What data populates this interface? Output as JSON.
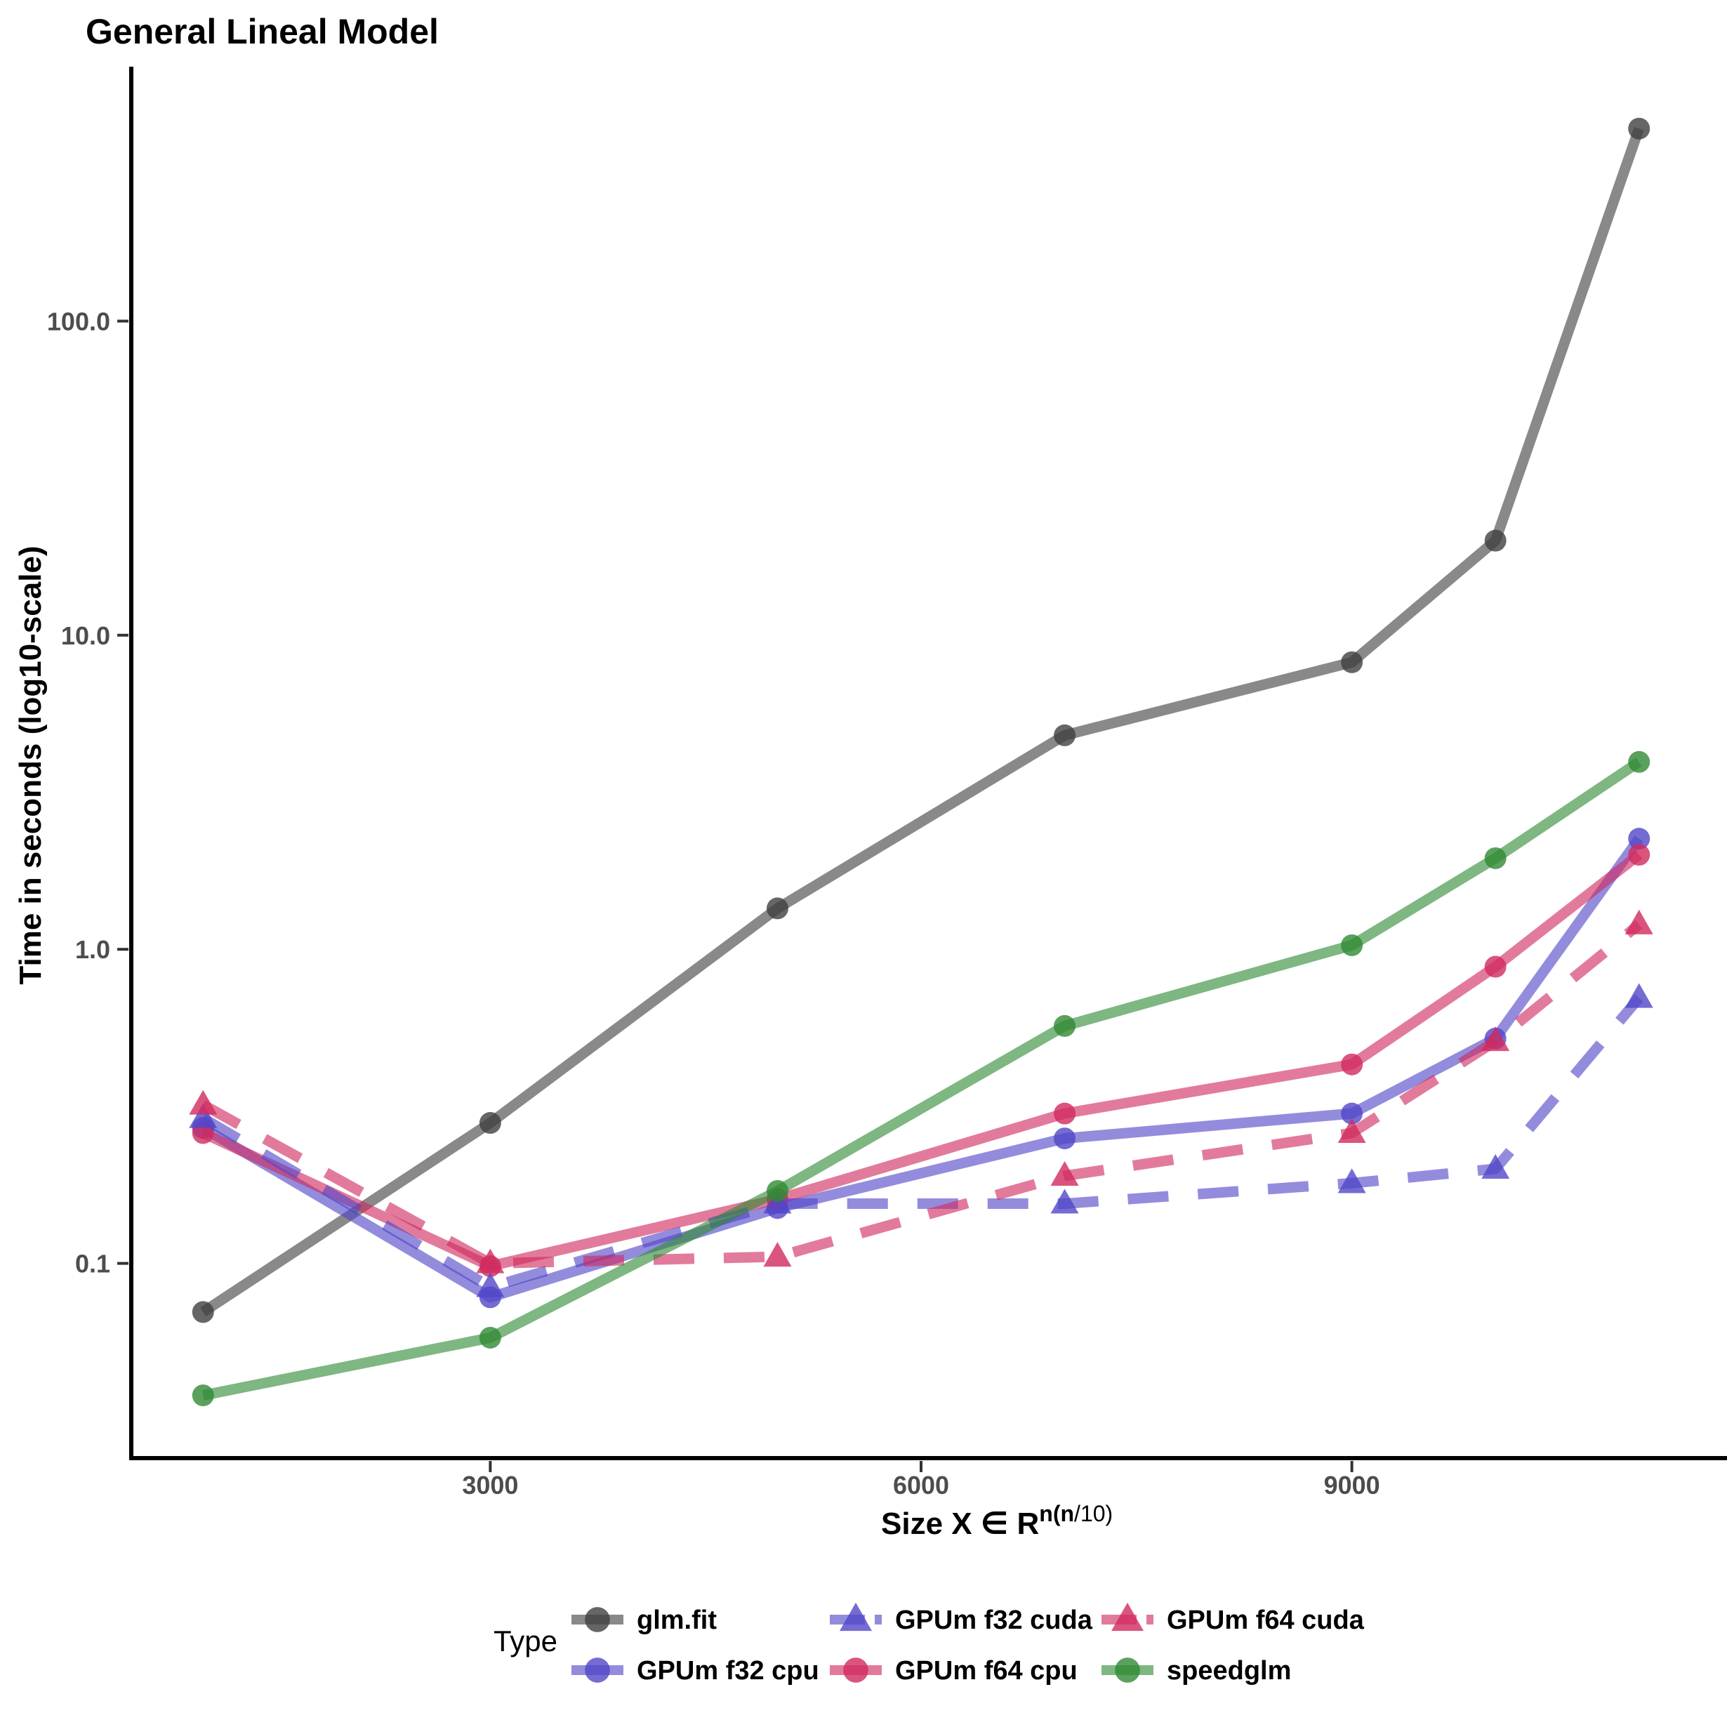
{
  "chart_data": {
    "type": "line",
    "title": "General Lineal Model",
    "ylabel": "Time in seconds (log10-scale)",
    "xlabel_main": "Size  X ∈ R",
    "xlabel_sup_bold": "n(n",
    "xlabel_sup_rest": "/10)",
    "y_scale": "log10",
    "x": [
      1000,
      3000,
      5000,
      7000,
      9000,
      10000,
      11000
    ],
    "x_ticks": [
      3000,
      6000,
      9000
    ],
    "x_tick_labels": [
      "3000",
      "6000",
      "9000"
    ],
    "y_ticks": [
      0.1,
      1.0,
      10.0,
      100.0
    ],
    "y_tick_labels": [
      "0.1",
      "1.0",
      "10.0",
      "100.0"
    ],
    "x_domain": [
      500,
      11500
    ],
    "y_domain_log": [
      -1.62,
      2.81
    ],
    "grid": "off",
    "legend_title": "Type",
    "legend_position": "bottom",
    "legend_columns": [
      [
        "glm.fit",
        "GPUm f32 cpu"
      ],
      [
        "GPUm f32 cuda",
        "GPUm f64 cpu"
      ],
      [
        "GPUm f64 cuda",
        "speedglm"
      ]
    ],
    "series": [
      {
        "name": "glm.fit",
        "color": "#404040",
        "linetype": "solid",
        "marker": "circle",
        "values": [
          0.07,
          0.28,
          1.35,
          4.8,
          8.2,
          20,
          410
        ]
      },
      {
        "name": "GPUm f32 cpu",
        "color": "#5146C8",
        "linetype": "solid",
        "marker": "circle",
        "values": [
          0.27,
          0.078,
          0.15,
          0.25,
          0.3,
          0.52,
          2.25
        ]
      },
      {
        "name": "GPUm f64 cpu",
        "color": "#D12A5E",
        "linetype": "solid",
        "marker": "circle",
        "values": [
          0.26,
          0.098,
          0.16,
          0.3,
          0.43,
          0.88,
          2.0
        ]
      },
      {
        "name": "GPUm f32 cuda",
        "color": "#5146C8",
        "linetype": "dashed",
        "marker": "triangle",
        "values": [
          0.29,
          0.084,
          0.155,
          0.155,
          0.18,
          0.2,
          0.7
        ]
      },
      {
        "name": "GPUm f64 cuda",
        "color": "#D12A5E",
        "linetype": "dashed",
        "marker": "triangle",
        "values": [
          0.32,
          0.1,
          0.105,
          0.19,
          0.26,
          0.51,
          1.2
        ]
      },
      {
        "name": "speedglm",
        "color": "#2F8A33",
        "linetype": "solid",
        "marker": "circle",
        "values": [
          0.038,
          0.058,
          0.17,
          0.57,
          1.03,
          1.95,
          3.95
        ]
      }
    ]
  }
}
